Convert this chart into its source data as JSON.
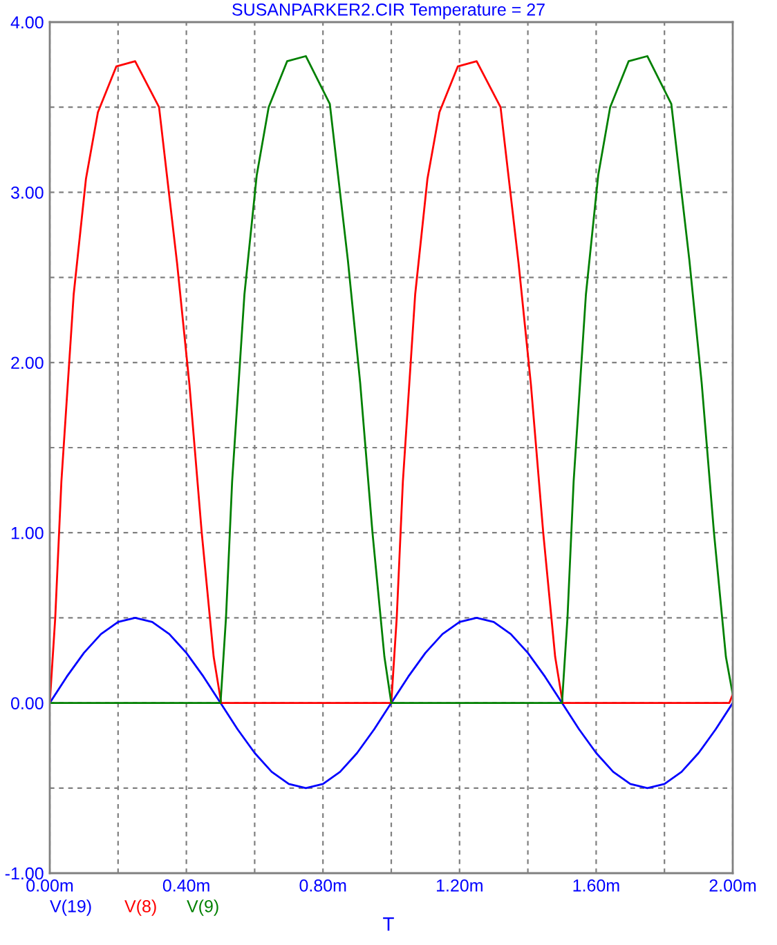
{
  "chart_data": {
    "type": "line",
    "title": "SUSANPARKER2.CIR Temperature = 27",
    "xlabel": "T",
    "xlim": [
      0,
      2
    ],
    "ylim": [
      -1,
      4
    ],
    "xticks": [
      {
        "value": 0,
        "label": "0.00m"
      },
      {
        "value": 0.2,
        "label": null
      },
      {
        "value": 0.4,
        "label": "0.40m"
      },
      {
        "value": 0.6,
        "label": null
      },
      {
        "value": 0.8,
        "label": "0.80m"
      },
      {
        "value": 1.0,
        "label": null
      },
      {
        "value": 1.2,
        "label": "1.20m"
      },
      {
        "value": 1.4,
        "label": null
      },
      {
        "value": 1.6,
        "label": "1.60m"
      },
      {
        "value": 1.8,
        "label": null
      },
      {
        "value": 2.0,
        "label": "2.00m"
      }
    ],
    "yticks": [
      {
        "value": -1,
        "label": "-1.00"
      },
      {
        "value": -0.5,
        "label": null
      },
      {
        "value": 0,
        "label": "0.00"
      },
      {
        "value": 0.5,
        "label": null
      },
      {
        "value": 1,
        "label": "1.00"
      },
      {
        "value": 1.5,
        "label": null
      },
      {
        "value": 2,
        "label": "2.00"
      },
      {
        "value": 2.5,
        "label": null
      },
      {
        "value": 3,
        "label": "3.00"
      },
      {
        "value": 3.5,
        "label": null
      },
      {
        "value": 4,
        "label": "4.00"
      }
    ],
    "grid": true,
    "legend": "bottom left",
    "marker": "none",
    "line_style": "solid",
    "series": [
      {
        "name": "V(19)",
        "color": "#0000ff",
        "x": [
          0,
          0.05,
          0.1,
          0.15,
          0.2,
          0.25,
          0.3,
          0.35,
          0.4,
          0.45,
          0.5,
          0.55,
          0.6,
          0.65,
          0.7,
          0.75,
          0.8,
          0.85,
          0.9,
          0.95,
          1.0,
          1.05,
          1.1,
          1.15,
          1.2,
          1.25,
          1.3,
          1.35,
          1.4,
          1.45,
          1.5,
          1.55,
          1.6,
          1.65,
          1.7,
          1.75,
          1.8,
          1.85,
          1.9,
          1.95,
          2.0
        ],
        "values": [
          0,
          0.155,
          0.294,
          0.405,
          0.476,
          0.5,
          0.476,
          0.405,
          0.294,
          0.155,
          0,
          -0.155,
          -0.294,
          -0.405,
          -0.476,
          -0.5,
          -0.476,
          -0.405,
          -0.294,
          -0.155,
          0,
          0.155,
          0.294,
          0.405,
          0.476,
          0.5,
          0.476,
          0.405,
          0.294,
          0.155,
          0,
          -0.155,
          -0.294,
          -0.405,
          -0.476,
          -0.5,
          -0.476,
          -0.405,
          -0.294,
          -0.155,
          0
        ]
      },
      {
        "name": "V(8)",
        "color": "#ff0000",
        "x": [
          0,
          0.016,
          0.034,
          0.07,
          0.106,
          0.141,
          0.195,
          0.25,
          0.32,
          0.373,
          0.409,
          0.445,
          0.48,
          0.502,
          0.99,
          1.0,
          1.016,
          1.034,
          1.07,
          1.106,
          1.141,
          1.195,
          1.25,
          1.32,
          1.373,
          1.409,
          1.445,
          1.48,
          1.502,
          1.99,
          2.0
        ],
        "values": [
          0,
          0.5,
          1.3,
          2.4,
          3.08,
          3.47,
          3.74,
          3.77,
          3.5,
          2.58,
          1.87,
          1.0,
          0.27,
          0,
          0,
          0,
          0.5,
          1.3,
          2.4,
          3.08,
          3.47,
          3.74,
          3.77,
          3.5,
          2.58,
          1.87,
          1.0,
          0.27,
          0,
          0,
          0.05
        ]
      },
      {
        "name": "V(9)",
        "color": "#008000",
        "x": [
          0,
          0.49,
          0.5,
          0.516,
          0.534,
          0.57,
          0.606,
          0.641,
          0.695,
          0.75,
          0.82,
          0.873,
          0.909,
          0.945,
          0.98,
          1.0,
          1.49,
          1.5,
          1.516,
          1.534,
          1.57,
          1.606,
          1.641,
          1.695,
          1.75,
          1.82,
          1.873,
          1.909,
          1.945,
          1.98,
          2.0
        ],
        "values": [
          0,
          0,
          0,
          0.5,
          1.3,
          2.4,
          3.1,
          3.5,
          3.77,
          3.8,
          3.52,
          2.6,
          1.88,
          1.0,
          0.27,
          0,
          0,
          0,
          0.5,
          1.3,
          2.4,
          3.1,
          3.5,
          3.77,
          3.8,
          3.52,
          2.6,
          1.88,
          1.0,
          0.27,
          0.05
        ]
      }
    ]
  }
}
